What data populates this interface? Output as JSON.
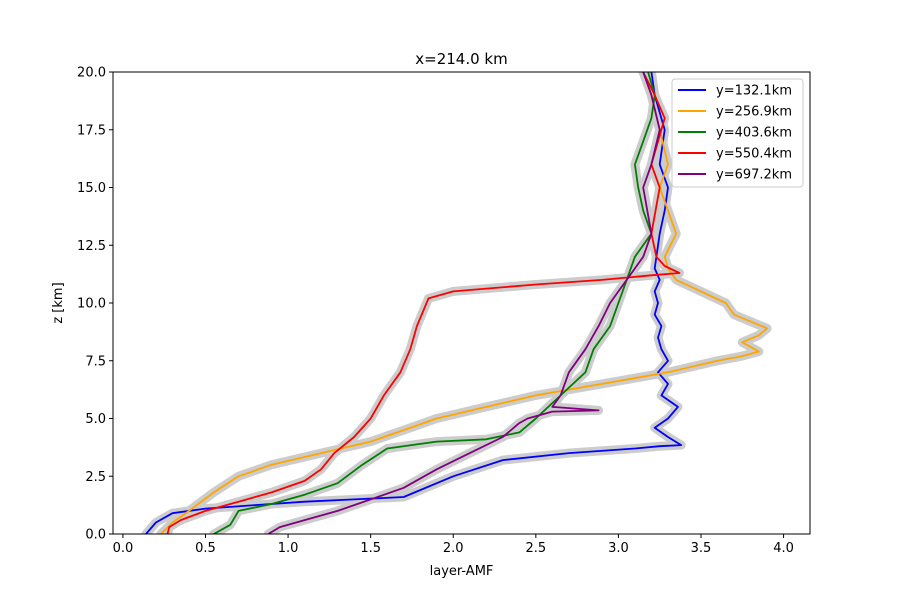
{
  "chart_data": {
    "type": "line",
    "title": "x=214.0 km",
    "xlabel": "layer-AMF",
    "ylabel": "z [km]",
    "xlim": [
      -0.06,
      4.16
    ],
    "ylim": [
      0,
      20
    ],
    "xticks": [
      0.0,
      0.5,
      1.0,
      1.5,
      2.0,
      2.5,
      3.0,
      3.5,
      4.0
    ],
    "xtick_labels": [
      "0.0",
      "0.5",
      "1.0",
      "1.5",
      "2.0",
      "2.5",
      "3.0",
      "3.5",
      "4.0"
    ],
    "yticks": [
      0.0,
      2.5,
      5.0,
      7.5,
      10.0,
      12.5,
      15.0,
      17.5,
      20.0
    ],
    "ytick_labels": [
      "0.0",
      "2.5",
      "5.0",
      "7.5",
      "10.0",
      "12.5",
      "15.0",
      "17.5",
      "20.0"
    ],
    "grid": false,
    "legend_position": "upper right",
    "band_color": "#cccccc",
    "series": [
      {
        "name": "y=132.1km",
        "color": "#0000ff",
        "x": [
          0.14,
          0.2,
          0.3,
          0.5,
          0.8,
          1.1,
          1.4,
          1.7,
          2.0,
          2.3,
          2.7,
          3.1,
          3.25,
          3.38,
          3.3,
          3.22,
          3.3,
          3.36,
          3.26,
          3.3,
          3.24,
          3.3,
          3.26,
          3.24,
          3.26,
          3.22,
          3.24,
          3.22,
          3.25,
          3.22,
          3.23,
          3.25,
          3.28,
          3.3,
          3.25,
          3.28,
          3.22,
          3.2
        ],
        "y": [
          0.0,
          0.5,
          0.9,
          1.1,
          1.25,
          1.4,
          1.5,
          1.6,
          2.5,
          3.2,
          3.5,
          3.7,
          3.8,
          3.85,
          4.2,
          4.6,
          5.0,
          5.5,
          6.0,
          6.5,
          7.0,
          7.5,
          8.0,
          8.5,
          9.0,
          9.5,
          10.0,
          10.5,
          11.0,
          11.5,
          12.0,
          13.0,
          14.0,
          15.0,
          16.0,
          17.5,
          19.0,
          20.0
        ]
      },
      {
        "name": "y=256.9km",
        "color": "#ffa500",
        "x": [
          0.23,
          0.3,
          0.4,
          0.55,
          0.7,
          0.9,
          1.2,
          1.5,
          1.7,
          1.9,
          2.2,
          2.5,
          2.9,
          3.3,
          3.6,
          3.75,
          3.85,
          3.75,
          3.85,
          3.9,
          3.7,
          3.65,
          3.5,
          3.35,
          3.3,
          3.28,
          3.35,
          3.3,
          3.25,
          3.3,
          3.25,
          3.2,
          3.15
        ],
        "y": [
          0.0,
          0.5,
          1.0,
          1.8,
          2.5,
          3.0,
          3.5,
          4.0,
          4.5,
          5.0,
          5.5,
          6.0,
          6.5,
          7.0,
          7.5,
          7.7,
          7.9,
          8.3,
          8.6,
          8.9,
          9.5,
          10.0,
          10.5,
          11.0,
          11.5,
          12.0,
          13.0,
          14.0,
          15.0,
          16.0,
          17.5,
          19.0,
          20.0
        ]
      },
      {
        "name": "y=403.6km",
        "color": "#008000",
        "x": [
          0.55,
          0.65,
          0.7,
          0.9,
          1.1,
          1.3,
          1.45,
          1.6,
          1.9,
          2.2,
          2.4,
          2.5,
          2.65,
          2.8,
          2.85,
          2.95,
          3.0,
          3.05,
          3.1,
          3.2,
          3.15,
          3.12,
          3.1,
          3.15,
          3.2,
          3.22,
          3.18
        ],
        "y": [
          0.0,
          0.4,
          1.0,
          1.3,
          1.7,
          2.2,
          3.0,
          3.7,
          4.0,
          4.1,
          4.4,
          5.0,
          6.0,
          7.0,
          8.0,
          9.0,
          10.0,
          11.0,
          12.0,
          13.0,
          14.0,
          15.0,
          16.0,
          17.0,
          18.0,
          19.0,
          20.0
        ]
      },
      {
        "name": "y=550.4km",
        "color": "#ff0000",
        "x": [
          0.27,
          0.28,
          0.35,
          0.5,
          0.7,
          0.9,
          1.1,
          1.2,
          1.28,
          1.4,
          1.5,
          1.58,
          1.68,
          1.74,
          1.78,
          1.85,
          2.0,
          2.5,
          2.9,
          3.2,
          3.37,
          3.28,
          3.23,
          3.2,
          3.25,
          3.2,
          3.28,
          3.22,
          3.15
        ],
        "y": [
          0.0,
          0.3,
          0.6,
          1.0,
          1.4,
          1.8,
          2.3,
          2.8,
          3.5,
          4.2,
          5.0,
          6.0,
          7.0,
          8.0,
          9.0,
          10.2,
          10.5,
          10.8,
          11.0,
          11.2,
          11.3,
          11.6,
          12.0,
          13.0,
          15.0,
          16.0,
          18.0,
          19.0,
          20.0
        ]
      },
      {
        "name": "y=697.2km",
        "color": "#800080",
        "x": [
          0.88,
          0.95,
          1.1,
          1.3,
          1.5,
          1.7,
          1.9,
          2.1,
          2.3,
          2.4,
          2.45,
          2.6,
          2.88,
          2.6,
          2.65,
          2.7,
          2.8,
          2.88,
          2.95,
          3.0,
          3.05,
          3.1,
          3.15,
          3.2,
          3.15,
          3.2,
          3.25,
          3.2,
          3.15
        ],
        "y": [
          0.0,
          0.3,
          0.6,
          1.0,
          1.5,
          2.0,
          2.8,
          3.5,
          4.2,
          4.8,
          5.0,
          5.3,
          5.35,
          5.5,
          6.0,
          7.0,
          8.0,
          9.0,
          10.0,
          10.5,
          11.0,
          11.5,
          12.0,
          13.0,
          15.0,
          16.0,
          17.5,
          19.0,
          20.0
        ]
      }
    ]
  }
}
